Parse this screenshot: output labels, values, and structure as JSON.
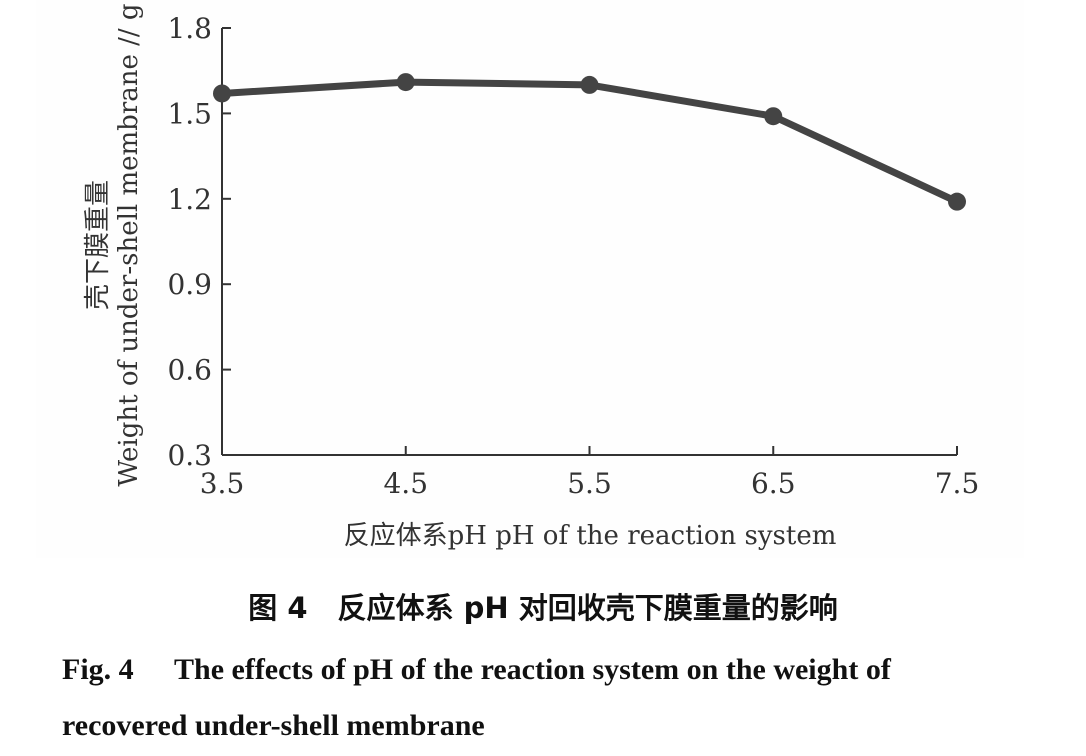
{
  "chart_data": {
    "type": "line",
    "x": [
      3.5,
      4.5,
      5.5,
      6.5,
      7.5
    ],
    "series": [
      {
        "values": [
          1.57,
          1.61,
          1.6,
          1.49,
          1.19
        ]
      }
    ],
    "xlim": [
      3.5,
      7.5
    ],
    "ylim": [
      0.3,
      1.8
    ],
    "x_ticks": [
      "3.5",
      "4.5",
      "5.5",
      "6.5",
      "7.5"
    ],
    "y_ticks": [
      "0.3",
      "0.6",
      "0.9",
      "1.2",
      "1.5",
      "1.8"
    ],
    "xlabel": "反应体系pH pH of the reaction system",
    "ylabel_cn": "壳下膜重量",
    "ylabel_en": "Weight of under-shell membrane // g",
    "grid": false,
    "line_color": "#444444"
  },
  "caption": {
    "cn_fig": "图 4",
    "cn_text": "反应体系 pH 对回收壳下膜重量的影响",
    "en_fig": "Fig. 4",
    "en_text": "The effects of pH of the reaction system on the weight of recovered under-shell membrane"
  }
}
